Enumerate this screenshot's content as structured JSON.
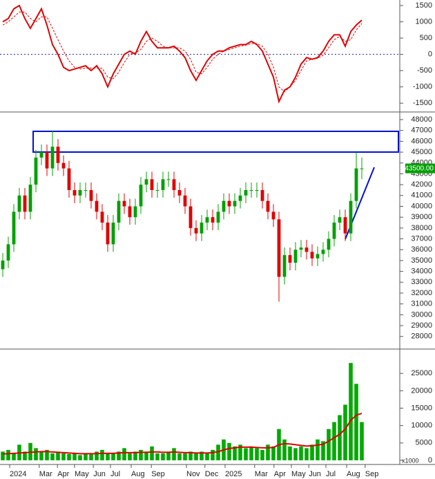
{
  "chart_data": [
    {
      "type": "line",
      "xlim": [
        -0.5,
        71.75
      ],
      "ylim": [
        -1750,
        1670
      ],
      "yticks": [
        -1500,
        -1000,
        -500,
        0,
        500,
        1000,
        1500
      ],
      "zero_line": 0,
      "series": [
        {
          "color": "#e00000",
          "dash": false,
          "values": [
            1000,
            1100,
            1400,
            1500,
            1100,
            800,
            1100,
            1400,
            900,
            300,
            0,
            -400,
            -500,
            -450,
            -400,
            -350,
            -500,
            -350,
            -600,
            -1000,
            -600,
            -300,
            0,
            100,
            0,
            400,
            700,
            400,
            200,
            200,
            200,
            250,
            100,
            -100,
            -500,
            -800,
            -500,
            -200,
            0,
            100,
            100,
            200,
            250,
            300,
            300,
            400,
            300,
            100,
            -300,
            -700,
            -1450,
            -1100,
            -1000,
            -700,
            -300,
            -100,
            -150,
            -100,
            100,
            400,
            600,
            600,
            250,
            700,
            900,
            1050
          ]
        },
        {
          "color": "#e00000",
          "dash": true,
          "values": [
            900,
            1000,
            1150,
            1300,
            1300,
            1100,
            1000,
            1150,
            1150,
            800,
            450,
            100,
            -200,
            -400,
            -450,
            -430,
            -420,
            -420,
            -430,
            -700,
            -750,
            -550,
            -250,
            0,
            50,
            150,
            400,
            500,
            400,
            250,
            200,
            200,
            200,
            100,
            -150,
            -550,
            -600,
            -400,
            -150,
            0,
            100,
            150,
            200,
            250,
            280,
            330,
            330,
            250,
            0,
            -400,
            -1000,
            -1150,
            -1000,
            -800,
            -500,
            -200,
            -150,
            -120,
            -30,
            200,
            450,
            550,
            400,
            450,
            750,
            950
          ]
        }
      ]
    },
    {
      "type": "candlestick",
      "xlim": [
        -0.5,
        71.75
      ],
      "ylim": [
        26900,
        48640
      ],
      "yticks": [
        28000,
        29000,
        30000,
        31000,
        32000,
        33000,
        34000,
        35000,
        36000,
        37000,
        38000,
        39000,
        40000,
        41000,
        42000,
        43000,
        44000,
        45000,
        46000,
        47000,
        48000
      ],
      "up_color": "#00a000",
      "down_color": "#e00000",
      "last": {
        "value": 43500,
        "label": "43500.00",
        "color": "#00a000"
      },
      "open": [
        34200,
        35000,
        36500,
        39500,
        41000,
        39500,
        42000,
        44500,
        45000,
        43500,
        45500,
        44000,
        43500,
        41500,
        41000,
        41500,
        41500,
        40500,
        39500,
        38500,
        36500,
        38500,
        40500,
        40000,
        39000,
        40000,
        42000,
        42500,
        41500,
        41500,
        42500,
        42500,
        41500,
        41000,
        40000,
        38000,
        37500,
        38500,
        39000,
        38500,
        39500,
        40500,
        40000,
        40500,
        41000,
        41500,
        41500,
        41500,
        40500,
        39500,
        38800,
        33500,
        35500,
        34800,
        36000,
        36200,
        35800,
        35200,
        35600,
        36000,
        37000,
        38500,
        39000,
        37500,
        40500,
        43500
      ],
      "high": [
        35700,
        37200,
        40200,
        41700,
        41700,
        42700,
        45200,
        45700,
        45700,
        47000,
        46200,
        44700,
        44200,
        42200,
        42200,
        42200,
        42200,
        41200,
        40200,
        39200,
        39200,
        41200,
        41200,
        40700,
        40700,
        42700,
        43200,
        43200,
        42200,
        43200,
        43200,
        43200,
        42200,
        41700,
        40700,
        38700,
        39200,
        39700,
        39700,
        40200,
        41200,
        41200,
        41200,
        41700,
        42200,
        42200,
        42200,
        42200,
        41200,
        40200,
        39500,
        36200,
        36200,
        36700,
        36900,
        36900,
        36500,
        36300,
        36700,
        37700,
        39200,
        39700,
        39700,
        41200,
        45000,
        44500
      ],
      "low": [
        33500,
        34300,
        35800,
        38800,
        38800,
        38800,
        41300,
        43800,
        42800,
        42800,
        43300,
        42800,
        40800,
        40300,
        40300,
        40800,
        39800,
        38800,
        37800,
        35800,
        35800,
        37800,
        39300,
        38300,
        38300,
        39300,
        41300,
        40800,
        40800,
        40800,
        41800,
        40800,
        40300,
        39300,
        37300,
        36800,
        36800,
        37800,
        37800,
        37800,
        38800,
        39300,
        39300,
        39800,
        40300,
        40800,
        40800,
        39800,
        38800,
        38100,
        31200,
        32800,
        34100,
        34100,
        35300,
        35100,
        34500,
        34500,
        34900,
        35300,
        36300,
        37800,
        36800,
        36800,
        39800,
        42500
      ],
      "close": [
        35000,
        36500,
        39500,
        41000,
        39500,
        42000,
        44500,
        45000,
        43500,
        45500,
        44000,
        43500,
        41500,
        41000,
        41500,
        41500,
        40500,
        39500,
        38500,
        36500,
        38500,
        40500,
        40000,
        39000,
        40000,
        42000,
        42500,
        41500,
        41500,
        42500,
        42500,
        41500,
        41000,
        40000,
        38000,
        37500,
        38500,
        39000,
        38500,
        39500,
        40500,
        40000,
        40500,
        41000,
        41500,
        41500,
        41500,
        40500,
        39500,
        38800,
        33500,
        35500,
        34800,
        36000,
        36200,
        35800,
        35200,
        35600,
        36000,
        37000,
        38500,
        39000,
        37500,
        40500,
        43500,
        43500
      ]
    },
    {
      "type": "bar",
      "xlim": [
        -0.5,
        71.75
      ],
      "xticks": [
        {
          "value": 1.25,
          "label": "2024"
        },
        {
          "value": 6.6,
          "label": "Mar"
        },
        {
          "value": 9.9,
          "label": "Apr"
        },
        {
          "value": 13,
          "label": "May"
        },
        {
          "value": 16.4,
          "label": "Jun"
        },
        {
          "value": 19.5,
          "label": "Jul"
        },
        {
          "value": 23.25,
          "label": "Aug"
        },
        {
          "value": 26.9,
          "label": "Sep"
        },
        {
          "value": 33.25,
          "label": "Nov"
        },
        {
          "value": 36.6,
          "label": "Dec"
        },
        {
          "value": 40.25,
          "label": "2025"
        },
        {
          "value": 45.6,
          "label": "Mar"
        },
        {
          "value": 49.1,
          "label": "Apr"
        },
        {
          "value": 52.25,
          "label": "May"
        },
        {
          "value": 55.4,
          "label": "Jun"
        },
        {
          "value": 58.5,
          "label": "Jul"
        },
        {
          "value": 62.25,
          "label": "Aug"
        },
        {
          "value": 65.6,
          "label": "Sep"
        }
      ],
      "ylim": [
        -1000,
        31800
      ],
      "yticks": [
        0,
        5000,
        10000,
        15000,
        20000,
        25000
      ],
      "unit_label": "x1000",
      "series": [
        {
          "type": "bar",
          "color": "#00aa00",
          "values": [
            2500,
            3000,
            2000,
            4500,
            2500,
            5000,
            3500,
            2500,
            3000,
            2000,
            2500,
            2000,
            1800,
            2200,
            1500,
            2000,
            1800,
            2500,
            3000,
            2000,
            2200,
            2500,
            3500,
            2000,
            2500,
            3000,
            2500,
            4000,
            2000,
            2000,
            2500,
            3500,
            2000,
            2000,
            2500,
            2000,
            2500,
            2000,
            3000,
            4500,
            6000,
            5000,
            4000,
            4500,
            3500,
            4000,
            3500,
            3000,
            4500,
            4000,
            9000,
            6000,
            4000,
            3500,
            4000,
            3500,
            4500,
            6000,
            5500,
            9000,
            11000,
            13000,
            16000,
            28000,
            22000,
            11000
          ]
        },
        {
          "type": "line",
          "color": "#dd0000",
          "values": [
            1800,
            1900,
            2000,
            2100,
            2200,
            2300,
            2400,
            2500,
            2500,
            2400,
            2300,
            2200,
            2100,
            2000,
            1900,
            1900,
            1900,
            1900,
            2000,
            2000,
            2000,
            2100,
            2200,
            2200,
            2200,
            2300,
            2300,
            2400,
            2400,
            2300,
            2300,
            2400,
            2300,
            2200,
            2200,
            2100,
            2100,
            2100,
            2200,
            2500,
            3000,
            3400,
            3600,
            3800,
            3800,
            3800,
            3700,
            3600,
            3600,
            3700,
            4500,
            4800,
            4700,
            4500,
            4300,
            4100,
            4200,
            4400,
            4600,
            5500,
            6500,
            7500,
            9000,
            11500,
            13000,
            13500
          ]
        }
      ]
    }
  ]
}
